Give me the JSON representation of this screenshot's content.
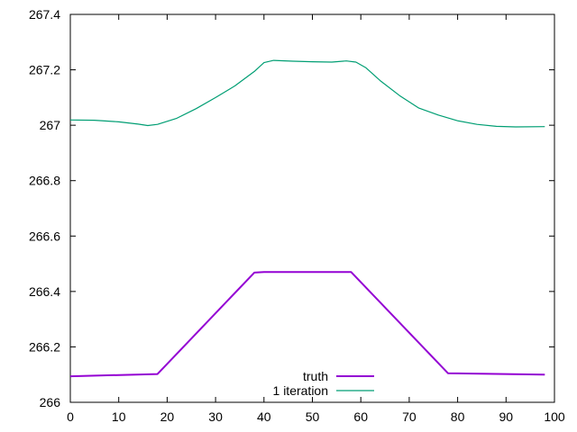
{
  "chart_data": {
    "type": "line",
    "xlim": [
      0,
      100
    ],
    "ylim": [
      266,
      267.4
    ],
    "x_ticks": [
      0,
      10,
      20,
      30,
      40,
      50,
      60,
      70,
      80,
      90,
      100
    ],
    "y_ticks": [
      266,
      266.2,
      266.4,
      266.6,
      266.8,
      267,
      267.2,
      267.4
    ],
    "x_tick_labels": [
      "0",
      "10",
      "20",
      "30",
      "40",
      "50",
      "60",
      "70",
      "80",
      "90",
      "100"
    ],
    "y_tick_labels": [
      "266",
      "266.2",
      "266.4",
      "266.6",
      "266.8",
      "267",
      "267.2",
      "267.4"
    ],
    "grid": false,
    "legend_position": "bottom-center",
    "series": [
      {
        "name": "truth",
        "color": "#9400d3",
        "points": [
          [
            0,
            266.094
          ],
          [
            18,
            266.102
          ],
          [
            38,
            266.468
          ],
          [
            40,
            266.47
          ],
          [
            58,
            266.47
          ],
          [
            78,
            266.105
          ],
          [
            98,
            266.1
          ]
        ]
      },
      {
        "name": "1 iteration",
        "color": "#009e73",
        "points": [
          [
            0,
            267.019
          ],
          [
            5,
            267.018
          ],
          [
            10,
            267.012
          ],
          [
            14,
            267.004
          ],
          [
            16,
            266.999
          ],
          [
            18,
            267.003
          ],
          [
            22,
            267.025
          ],
          [
            26,
            267.06
          ],
          [
            30,
            267.1
          ],
          [
            34,
            267.142
          ],
          [
            38,
            267.194
          ],
          [
            40,
            267.226
          ],
          [
            42,
            267.234
          ],
          [
            46,
            267.231
          ],
          [
            50,
            267.229
          ],
          [
            54,
            267.228
          ],
          [
            57,
            267.232
          ],
          [
            59,
            267.228
          ],
          [
            61,
            267.208
          ],
          [
            64,
            267.161
          ],
          [
            68,
            267.107
          ],
          [
            72,
            267.062
          ],
          [
            76,
            267.037
          ],
          [
            80,
            267.016
          ],
          [
            84,
            267.003
          ],
          [
            88,
            266.996
          ],
          [
            92,
            266.994
          ],
          [
            98,
            266.995
          ]
        ]
      }
    ]
  }
}
